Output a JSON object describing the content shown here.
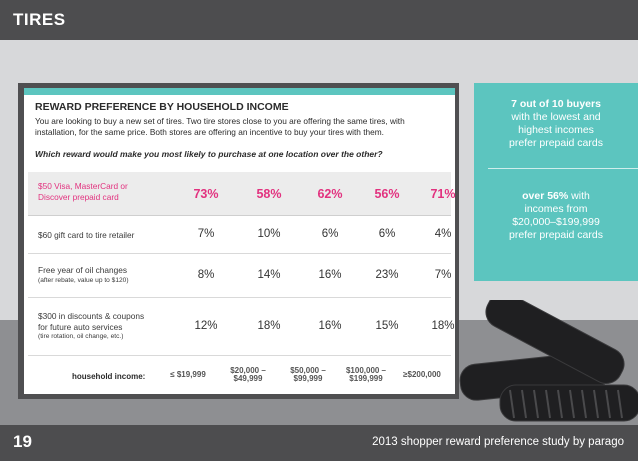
{
  "header": {
    "section_title": "TIRES"
  },
  "card": {
    "title": "REWARD PREFERENCE BY HOUSEHOLD INCOME",
    "intro": "You are looking to buy a new set of tires. Two tire stores close to you are offering the same tires, with installation, for the same price. Both stores are offering an incentive to buy your tires with them.",
    "question": "Which reward would make you most likely to purchase at one location over the other?"
  },
  "table": {
    "rows": [
      {
        "label": "$50 Visa, MasterCard or",
        "label2": "Discover prepaid card",
        "sub": "",
        "values": [
          "73%",
          "58%",
          "62%",
          "56%",
          "71%"
        ]
      },
      {
        "label": "$60 gift card to tire retailer",
        "label2": "",
        "sub": "",
        "values": [
          "7%",
          "10%",
          "6%",
          "6%",
          "4%"
        ]
      },
      {
        "label": "Free year of oil changes",
        "label2": "",
        "sub": "(after rebate, value up to $120)",
        "values": [
          "8%",
          "14%",
          "16%",
          "23%",
          "7%"
        ]
      },
      {
        "label": "$300 in discounts & coupons",
        "label2": "for future auto services",
        "sub": "(tire rotation, oil change, etc.)",
        "values": [
          "12%",
          "18%",
          "16%",
          "15%",
          "18%"
        ]
      }
    ],
    "income_label": "household income:",
    "incomes": [
      {
        "line1": "≤ $19,999",
        "line2": ""
      },
      {
        "line1": "$20,000 –",
        "line2": "$49,999"
      },
      {
        "line1": "$50,000 –",
        "line2": "$99,999"
      },
      {
        "line1": "$100,000 –",
        "line2": "$199,999"
      },
      {
        "line1": "≥$200,000",
        "line2": ""
      }
    ]
  },
  "callouts": {
    "one_bold": "7 out of 10 buyers",
    "one_rest1": "with the lowest and",
    "one_rest2": "highest incomes",
    "one_rest3": "prefer prepaid cards",
    "two_bold": "over 56%",
    "two_rest0": "with",
    "two_rest1": "incomes from",
    "two_rest2": "$20,000–$199,999",
    "two_rest3": "prefer prepaid cards"
  },
  "footer": {
    "page_number": "19",
    "text": "2013 shopper reward preference study by parago"
  },
  "colors": {
    "accent_pink": "#e2327f",
    "teal": "#5cc5bf",
    "dark_bar": "#4d4d4f"
  }
}
